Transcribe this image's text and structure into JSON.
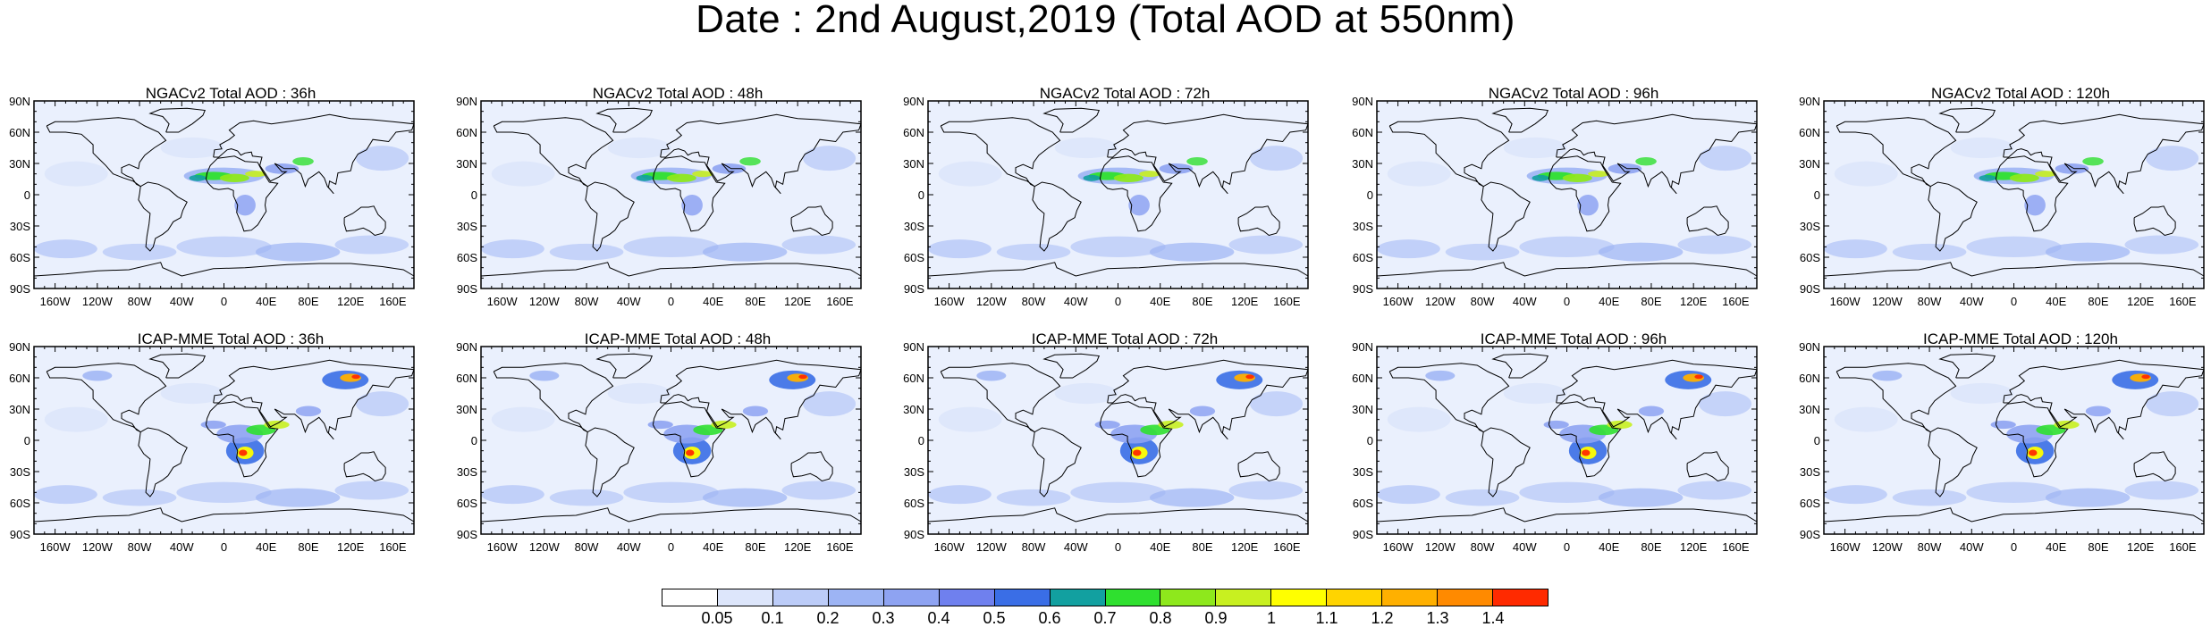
{
  "title": "Date : 2nd August,2019 (Total AOD at 550nm)",
  "lat_labels": [
    "90N",
    "60N",
    "30N",
    "0",
    "30S",
    "60S",
    "90S"
  ],
  "lon_labels": [
    "160W",
    "120W",
    "80W",
    "40W",
    "0",
    "40E",
    "80E",
    "120E",
    "160E"
  ],
  "panels": [
    {
      "title": "NGACv2 Total AOD : 36h",
      "model": "NGACv2",
      "lead": "36h"
    },
    {
      "title": "NGACv2 Total AOD : 48h",
      "model": "NGACv2",
      "lead": "48h"
    },
    {
      "title": "NGACv2 Total AOD : 72h",
      "model": "NGACv2",
      "lead": "72h"
    },
    {
      "title": "NGACv2 Total AOD : 96h",
      "model": "NGACv2",
      "lead": "96h"
    },
    {
      "title": "NGACv2 Total AOD : 120h",
      "model": "NGACv2",
      "lead": "120h"
    },
    {
      "title": "ICAP-MME Total AOD : 36h",
      "model": "ICAP-MME",
      "lead": "36h"
    },
    {
      "title": "ICAP-MME Total AOD : 48h",
      "model": "ICAP-MME",
      "lead": "48h"
    },
    {
      "title": "ICAP-MME Total AOD : 72h",
      "model": "ICAP-MME",
      "lead": "72h"
    },
    {
      "title": "ICAP-MME Total AOD : 96h",
      "model": "ICAP-MME",
      "lead": "96h"
    },
    {
      "title": "ICAP-MME Total AOD : 120h",
      "model": "ICAP-MME",
      "lead": "120h"
    }
  ],
  "colorbar": {
    "labels": [
      "0.05",
      "0.1",
      "0.2",
      "0.3",
      "0.4",
      "0.5",
      "0.6",
      "0.7",
      "0.8",
      "0.9",
      "1",
      "1.1",
      "1.2",
      "1.3",
      "1.4"
    ],
    "colors": [
      "#ffffff",
      "#dde6fb",
      "#bcccf8",
      "#9db4f4",
      "#8ea3f2",
      "#6f80ee",
      "#3a6ee6",
      "#12a0a0",
      "#2fe02f",
      "#8ee81c",
      "#c8f020",
      "#ffff00",
      "#ffd400",
      "#ffb000",
      "#ff8a00",
      "#ff2a00"
    ]
  }
}
